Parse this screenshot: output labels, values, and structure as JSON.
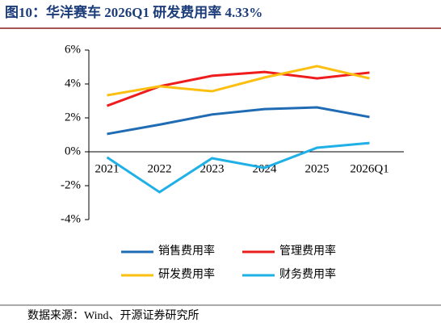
{
  "title": "图10：华洋赛车 2026Q1 研发费用率 4.33%",
  "source": "数据来源：Wind、开源证券研究所",
  "chart_data": {
    "type": "line",
    "categories": [
      "2021",
      "2022",
      "2023",
      "2024",
      "2025",
      "2026Q1"
    ],
    "series": [
      {
        "name": "销售费用率",
        "color": "#1f6bb4",
        "values": [
          1.05,
          1.6,
          2.2,
          2.52,
          2.62,
          2.05
        ]
      },
      {
        "name": "管理费用率",
        "color": "#ee1c1c",
        "values": [
          2.71,
          3.86,
          4.48,
          4.71,
          4.33,
          4.67
        ]
      },
      {
        "name": "研发费用率",
        "color": "#fbbf10",
        "values": [
          3.33,
          3.86,
          3.57,
          4.38,
          5.05,
          4.33
        ]
      },
      {
        "name": "财务费用率",
        "color": "#1fb0e6",
        "values": [
          -0.33,
          -2.38,
          -0.38,
          -0.95,
          0.24,
          0.52
        ]
      }
    ],
    "ylim": [
      -4,
      6
    ],
    "yticks": [
      {
        "value": -4,
        "label": "-4%"
      },
      {
        "value": -2,
        "label": "-2%"
      },
      {
        "value": 0,
        "label": "0%"
      },
      {
        "value": 2,
        "label": "2%"
      },
      {
        "value": 4,
        "label": "4%"
      },
      {
        "value": 6,
        "label": "6%"
      }
    ]
  }
}
